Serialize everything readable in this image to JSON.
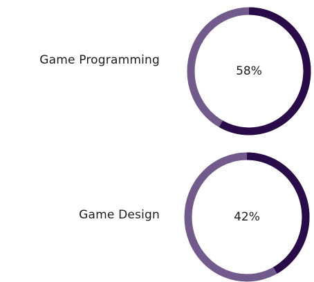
{
  "skills": [
    {
      "label": "Game Programming",
      "percent_label": "58%",
      "percent": 58
    },
    {
      "label": "Game Design",
      "percent_label": "42%",
      "percent": 42
    }
  ],
  "colors": {
    "track": "#735a8c",
    "progress": "#2a0b4a",
    "text": "#1a1a1a",
    "background": "#ffffff"
  }
}
